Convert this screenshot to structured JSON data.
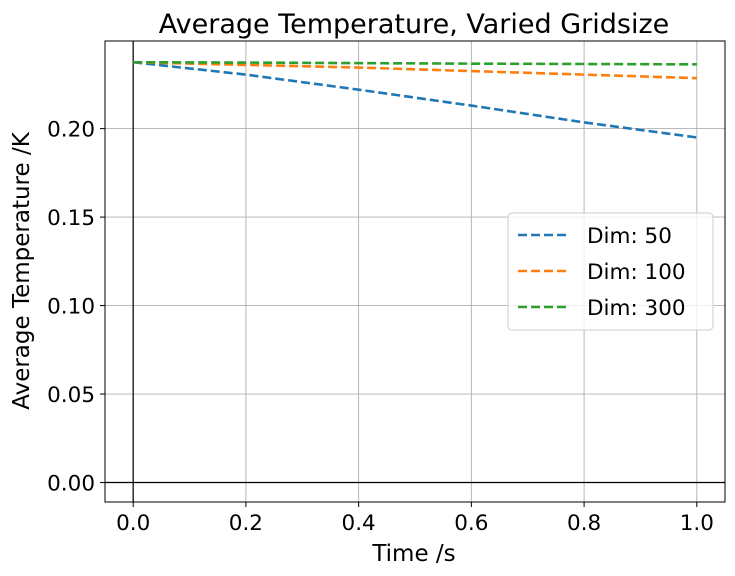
{
  "chart_data": {
    "type": "line",
    "title": "Average Temperature, Varied Gridsize",
    "xlabel": "Time /s",
    "ylabel": "Average Temperature /K",
    "xlim": [
      -0.05,
      1.05
    ],
    "ylim": [
      -0.011,
      0.2495
    ],
    "x_ticks": [
      0.0,
      0.2,
      0.4,
      0.6,
      0.8,
      1.0
    ],
    "x_tick_labels": [
      "0.0",
      "0.2",
      "0.4",
      "0.6",
      "0.8",
      "1.0"
    ],
    "y_ticks": [
      0.0,
      0.05,
      0.1,
      0.15,
      0.2
    ],
    "y_tick_labels": [
      "0.00",
      "0.05",
      "0.10",
      "0.15",
      "0.20"
    ],
    "grid": true,
    "zero_lines": true,
    "legend_position": "center-right",
    "series": [
      {
        "name": "Dim: 50",
        "color": "#1f77b4",
        "linestyle": "dashed",
        "x": [
          0.0,
          0.2,
          0.4,
          0.6,
          0.8,
          1.0
        ],
        "y": [
          0.2375,
          0.2305,
          0.222,
          0.213,
          0.2035,
          0.195
        ]
      },
      {
        "name": "Dim: 100",
        "color": "#ff7f0e",
        "linestyle": "dashed",
        "x": [
          0.0,
          0.2,
          0.4,
          0.6,
          0.8,
          1.0
        ],
        "y": [
          0.2375,
          0.236,
          0.2345,
          0.2325,
          0.2305,
          0.2285
        ]
      },
      {
        "name": "Dim: 300",
        "color": "#2ca02c",
        "linestyle": "dashed",
        "x": [
          0.0,
          0.2,
          0.4,
          0.6,
          0.8,
          1.0
        ],
        "y": [
          0.2375,
          0.2373,
          0.237,
          0.2367,
          0.2365,
          0.2363
        ]
      }
    ]
  }
}
